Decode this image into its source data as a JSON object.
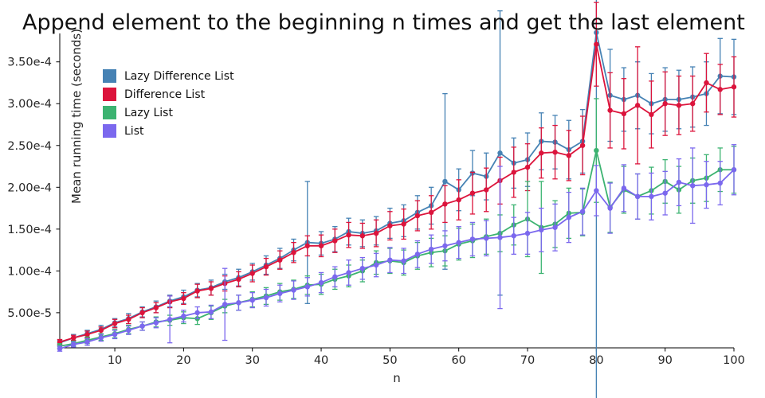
{
  "chart_data": {
    "type": "line",
    "title": "Append element to the beginning n times and get the last element",
    "xlabel": "n",
    "ylabel": "Mean running time (seconds)",
    "grid": false,
    "legend_position": "upper-left-inside",
    "value_unit": "1e-4 seconds",
    "xlim": [
      2,
      100
    ],
    "ylim_e4": [
      0.08,
      3.84
    ],
    "xticks": [
      10,
      20,
      30,
      40,
      50,
      60,
      70,
      80,
      90,
      100
    ],
    "ytick_labels": [
      "5.00e-5",
      "1.00e-4",
      "1.50e-4",
      "2.00e-4",
      "2.50e-4",
      "3.00e-4",
      "3.50e-4"
    ],
    "ytick_values_e4": [
      0.5,
      1.0,
      1.5,
      2.0,
      2.5,
      3.0,
      3.5
    ],
    "x": [
      2,
      4,
      6,
      8,
      10,
      12,
      14,
      16,
      18,
      20,
      22,
      24,
      26,
      28,
      30,
      32,
      34,
      36,
      38,
      40,
      42,
      44,
      46,
      48,
      50,
      52,
      54,
      56,
      58,
      60,
      62,
      64,
      66,
      68,
      70,
      72,
      74,
      76,
      78,
      80,
      82,
      84,
      86,
      88,
      90,
      92,
      94,
      96,
      98,
      100
    ],
    "series": [
      {
        "name": "Lazy Difference List",
        "color": "#4682b4",
        "values_e4": [
          0.14,
          0.2,
          0.25,
          0.3,
          0.38,
          0.43,
          0.51,
          0.57,
          0.64,
          0.69,
          0.77,
          0.8,
          0.87,
          0.92,
          0.99,
          1.07,
          1.15,
          1.25,
          1.34,
          1.33,
          1.38,
          1.47,
          1.45,
          1.48,
          1.57,
          1.6,
          1.7,
          1.78,
          2.07,
          1.97,
          2.17,
          2.13,
          2.41,
          2.29,
          2.33,
          2.55,
          2.54,
          2.45,
          2.55,
          3.85,
          3.1,
          3.05,
          3.1,
          3.0,
          3.05,
          3.05,
          3.08,
          3.12,
          3.33,
          3.32
        ],
        "err_e4": [
          0.03,
          0.04,
          0.04,
          0.05,
          0.05,
          0.06,
          0.06,
          0.07,
          0.07,
          0.08,
          0.08,
          0.09,
          0.09,
          0.1,
          0.1,
          0.11,
          0.12,
          0.13,
          0.73,
          0.14,
          0.15,
          0.16,
          0.16,
          0.17,
          0.18,
          0.19,
          0.2,
          0.22,
          1.05,
          0.25,
          0.27,
          0.28,
          1.7,
          0.3,
          0.32,
          0.34,
          0.32,
          0.35,
          0.38,
          4.4,
          0.55,
          0.38,
          0.4,
          0.36,
          0.38,
          0.35,
          0.36,
          0.38,
          0.45,
          0.45
        ]
      },
      {
        "name": "Difference List",
        "color": "#dc143c",
        "values_e4": [
          0.15,
          0.2,
          0.24,
          0.29,
          0.37,
          0.42,
          0.5,
          0.56,
          0.63,
          0.67,
          0.76,
          0.79,
          0.85,
          0.9,
          0.97,
          1.05,
          1.13,
          1.22,
          1.3,
          1.3,
          1.36,
          1.43,
          1.42,
          1.45,
          1.54,
          1.56,
          1.66,
          1.7,
          1.8,
          1.85,
          1.93,
          1.97,
          2.08,
          2.18,
          2.24,
          2.41,
          2.42,
          2.38,
          2.5,
          3.71,
          2.92,
          2.88,
          2.98,
          2.87,
          3.0,
          2.98,
          3.0,
          3.25,
          3.17,
          3.2
        ],
        "err_e4": [
          0.03,
          0.03,
          0.04,
          0.04,
          0.05,
          0.05,
          0.06,
          0.06,
          0.07,
          0.07,
          0.08,
          0.08,
          0.09,
          0.09,
          0.1,
          0.1,
          0.11,
          0.12,
          0.12,
          0.13,
          0.14,
          0.15,
          0.15,
          0.16,
          0.17,
          0.18,
          0.18,
          0.2,
          0.22,
          0.24,
          0.25,
          0.26,
          0.28,
          0.3,
          0.28,
          0.3,
          0.32,
          0.3,
          0.35,
          0.5,
          0.45,
          0.42,
          0.7,
          0.4,
          0.38,
          0.35,
          0.33,
          0.35,
          0.3,
          0.36
        ]
      },
      {
        "name": "Lazy List",
        "color": "#3cb371",
        "values_e4": [
          0.1,
          0.13,
          0.17,
          0.21,
          0.25,
          0.3,
          0.34,
          0.39,
          0.41,
          0.44,
          0.43,
          0.5,
          0.58,
          0.62,
          0.66,
          0.7,
          0.75,
          0.78,
          0.83,
          0.84,
          0.9,
          0.94,
          1.0,
          1.1,
          1.12,
          1.1,
          1.18,
          1.22,
          1.24,
          1.32,
          1.36,
          1.41,
          1.45,
          1.55,
          1.62,
          1.52,
          1.56,
          1.69,
          1.7,
          2.44,
          1.76,
          1.97,
          1.89,
          1.96,
          2.07,
          1.97,
          2.08,
          2.11,
          2.21,
          2.21
        ],
        "err_e4": [
          0.03,
          0.03,
          0.04,
          0.04,
          0.05,
          0.05,
          0.05,
          0.06,
          0.06,
          0.07,
          0.07,
          0.08,
          0.08,
          0.09,
          0.09,
          0.1,
          0.1,
          0.11,
          0.11,
          0.12,
          0.12,
          0.13,
          0.13,
          0.14,
          0.15,
          0.15,
          0.16,
          0.17,
          0.18,
          0.19,
          0.2,
          0.21,
          0.22,
          0.24,
          0.45,
          0.55,
          0.28,
          0.3,
          0.28,
          0.62,
          0.3,
          0.28,
          0.27,
          0.28,
          0.26,
          0.28,
          0.27,
          0.28,
          0.26,
          0.28
        ]
      },
      {
        "name": "List",
        "color": "#7b68ee",
        "values_e4": [
          0.07,
          0.12,
          0.15,
          0.2,
          0.24,
          0.29,
          0.34,
          0.38,
          0.42,
          0.46,
          0.5,
          0.51,
          0.6,
          0.62,
          0.65,
          0.68,
          0.73,
          0.77,
          0.81,
          0.86,
          0.93,
          0.98,
          1.03,
          1.07,
          1.13,
          1.12,
          1.2,
          1.26,
          1.3,
          1.34,
          1.38,
          1.39,
          1.4,
          1.42,
          1.45,
          1.49,
          1.52,
          1.64,
          1.71,
          1.96,
          1.75,
          1.99,
          1.89,
          1.89,
          1.93,
          2.06,
          2.02,
          2.03,
          2.05,
          2.21
        ],
        "err_e4": [
          0.03,
          0.03,
          0.04,
          0.04,
          0.05,
          0.05,
          0.05,
          0.06,
          0.28,
          0.07,
          0.07,
          0.08,
          0.43,
          0.09,
          0.09,
          0.1,
          0.1,
          0.11,
          0.11,
          0.12,
          0.12,
          0.15,
          0.13,
          0.14,
          0.15,
          0.15,
          0.16,
          0.17,
          0.18,
          0.19,
          0.2,
          0.21,
          0.85,
          0.22,
          0.25,
          0.26,
          0.28,
          0.3,
          0.28,
          0.3,
          0.3,
          0.28,
          0.27,
          0.28,
          0.26,
          0.28,
          0.45,
          0.28,
          0.26,
          0.3
        ]
      }
    ]
  }
}
